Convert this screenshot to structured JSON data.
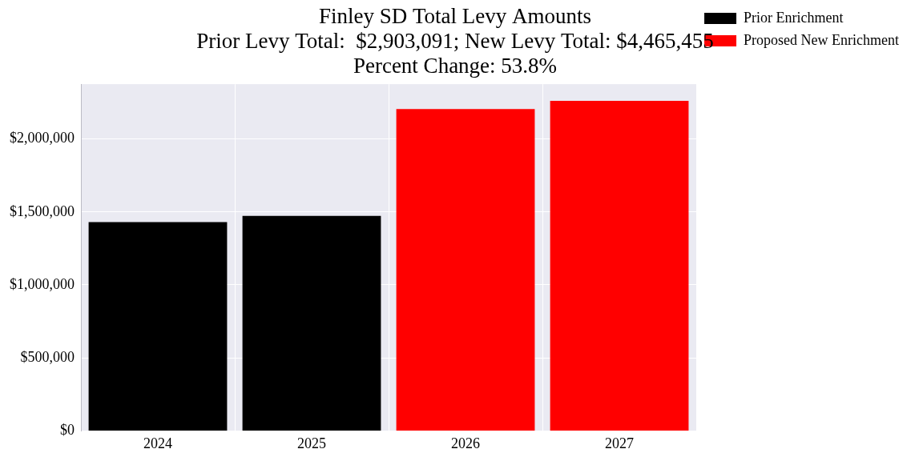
{
  "chart_data": {
    "type": "bar",
    "title": [
      "Finley SD Total Levy Amounts",
      "Prior Levy Total:  $2,903,091; New Levy Total: $4,465,455",
      "Percent Change: 53.8%"
    ],
    "categories": [
      "2024",
      "2025",
      "2026",
      "2027"
    ],
    "series": [
      {
        "name": "Prior Enrichment",
        "color": "#000000",
        "values": [
          1430000,
          1473091,
          null,
          null
        ]
      },
      {
        "name": "Proposed New Enrichment",
        "color": "#ff0000",
        "values": [
          null,
          null,
          2205000,
          2260455
        ]
      }
    ],
    "ylim": [
      0,
      2375000
    ],
    "yticks": [
      {
        "value": 0,
        "label": "$0"
      },
      {
        "value": 500000,
        "label": "$500,000"
      },
      {
        "value": 1000000,
        "label": "$1,000,000"
      },
      {
        "value": 1500000,
        "label": "$1,500,000"
      },
      {
        "value": 2000000,
        "label": "$2,000,000"
      }
    ],
    "grid": true,
    "legend": "upper right"
  }
}
